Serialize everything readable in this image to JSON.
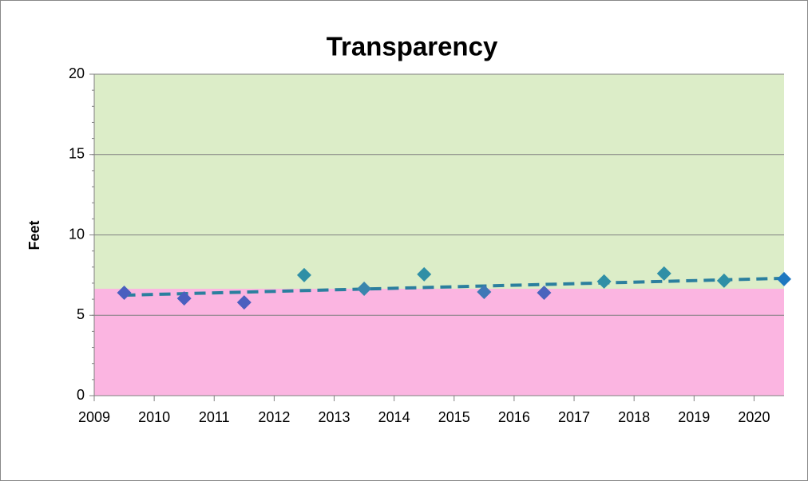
{
  "chart_data": {
    "type": "scatter",
    "title": "Transparency",
    "y_label": "Feet",
    "x": [
      2009.5,
      2010.5,
      2011.5,
      2012.5,
      2013.5,
      2014.5,
      2015.5,
      2016.5,
      2017.5,
      2018.5,
      2019.5,
      2020.5
    ],
    "values": [
      6.4,
      6.05,
      5.8,
      7.5,
      6.65,
      7.55,
      6.45,
      6.4,
      7.1,
      7.6,
      7.15,
      7.25
    ],
    "colors": [
      "#4a5fbf",
      "#4a5fbf",
      "#4a5fbf",
      "#2f8fa6",
      "#3a86ad",
      "#2f8fa6",
      "#3f78b6",
      "#4a64bd",
      "#2f8fa6",
      "#2f8fa6",
      "#2f8fa6",
      "#1f78c0"
    ],
    "trend": {
      "x": [
        2009.5,
        2020.5
      ],
      "values": [
        6.25,
        7.3
      ],
      "color": "#2b7f9e"
    },
    "bands": [
      {
        "from": 0,
        "to": 6.65,
        "color": "#fbb5e1"
      },
      {
        "from": 6.65,
        "to": 20,
        "color": "#dcedc8"
      }
    ],
    "xlim": [
      2009,
      2020.5
    ],
    "xticks": [
      2009,
      2010,
      2011,
      2012,
      2013,
      2014,
      2015,
      2016,
      2017,
      2018,
      2019,
      2020
    ],
    "ylim": [
      0,
      20
    ],
    "yticks": [
      0,
      5,
      10,
      15,
      20
    ],
    "y_minor_step": 1,
    "grid": true
  }
}
